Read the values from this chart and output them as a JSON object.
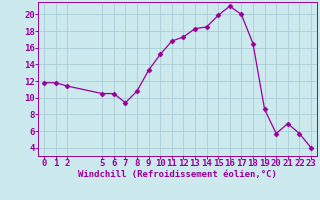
{
  "x": [
    0,
    1,
    2,
    5,
    6,
    7,
    8,
    9,
    10,
    11,
    12,
    13,
    14,
    15,
    16,
    17,
    18,
    19,
    20,
    21,
    22,
    23
  ],
  "y": [
    11.8,
    11.8,
    11.4,
    10.5,
    10.5,
    9.4,
    10.8,
    13.3,
    15.2,
    16.8,
    17.3,
    18.3,
    18.5,
    19.9,
    21.0,
    20.0,
    16.5,
    8.6,
    5.7,
    6.9,
    5.7,
    4.0
  ],
  "line_color": "#990099",
  "marker": "D",
  "marker_size": 2.5,
  "bg_color": "#cce9ee",
  "grid_color": "#aacdd5",
  "tick_color": "#990099",
  "label_color": "#990099",
  "xlabel": "Windchill (Refroidissement éolien,°C)",
  "xlim": [
    -0.5,
    23.5
  ],
  "ylim": [
    3.0,
    21.5
  ],
  "yticks": [
    4,
    6,
    8,
    10,
    12,
    14,
    16,
    18,
    20
  ],
  "xticks": [
    0,
    1,
    2,
    5,
    6,
    7,
    8,
    9,
    10,
    11,
    12,
    13,
    14,
    15,
    16,
    17,
    18,
    19,
    20,
    21,
    22,
    23
  ],
  "font_size": 6.5
}
